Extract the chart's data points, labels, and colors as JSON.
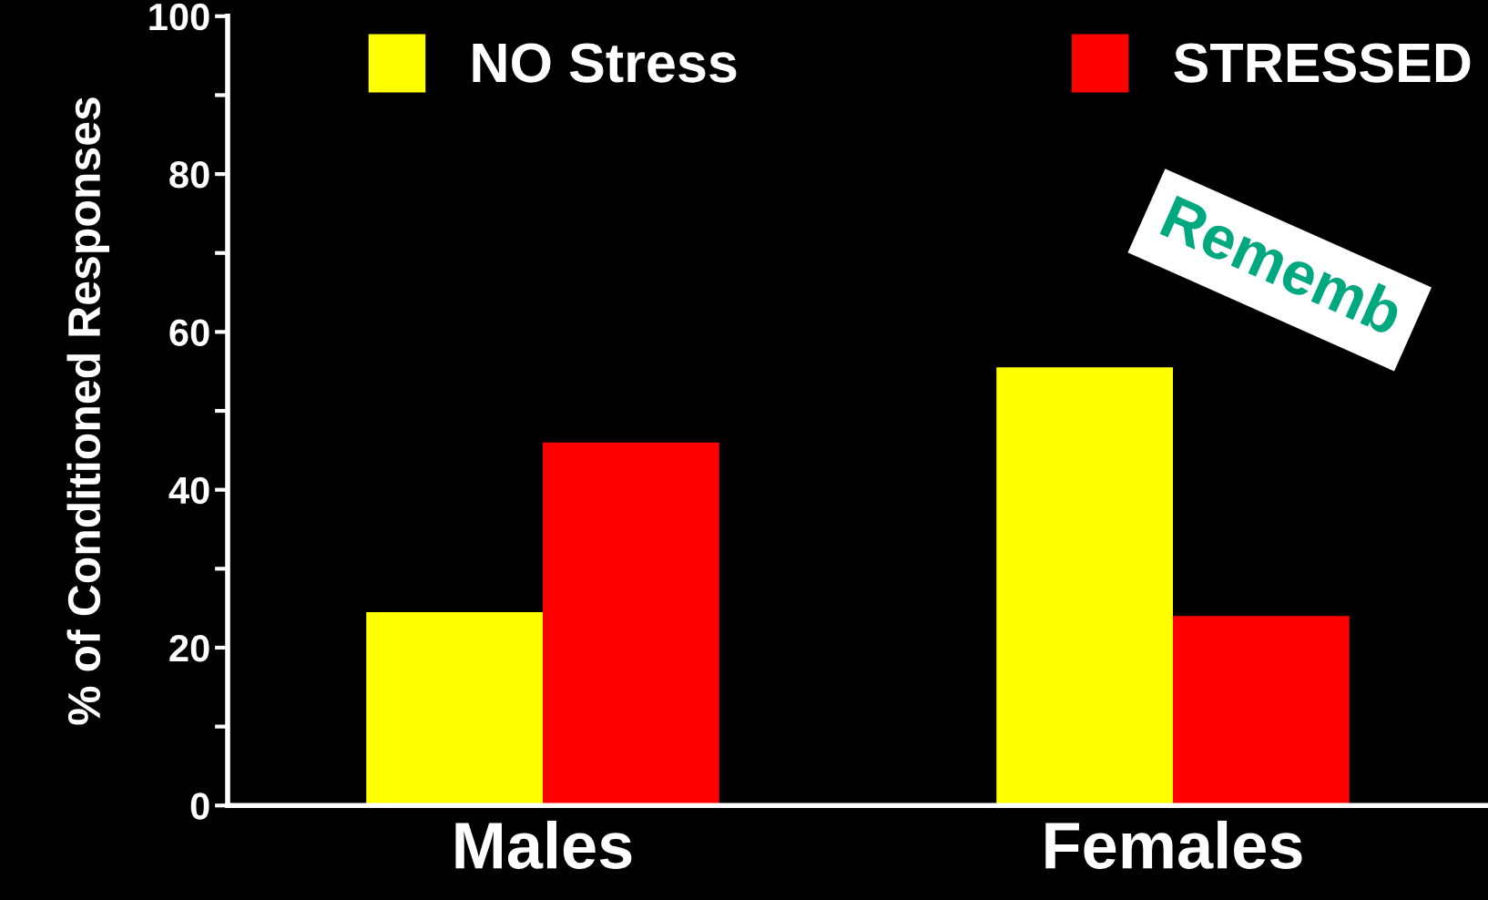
{
  "chart_data": {
    "type": "bar",
    "ylabel": "% of Conditioned Responses",
    "categories": [
      "Males",
      "Females"
    ],
    "series": [
      {
        "name": "NO Stress",
        "color": "#ffff00",
        "values": [
          24.5,
          55.5
        ]
      },
      {
        "name": "STRESSED",
        "color": "#ff0000",
        "values": [
          46,
          24
        ]
      }
    ],
    "ylim": [
      0,
      100
    ],
    "yticks": [
      0,
      {
        "value": 10,
        "label": null
      },
      20,
      {
        "value": 30,
        "label": null
      },
      40,
      {
        "value": 50,
        "label": null
      },
      60,
      {
        "value": 70,
        "label": null
      },
      80,
      {
        "value": 90,
        "label": null
      },
      100
    ],
    "legend": "top",
    "grid": false,
    "annotations": [
      "Rememb"
    ]
  }
}
